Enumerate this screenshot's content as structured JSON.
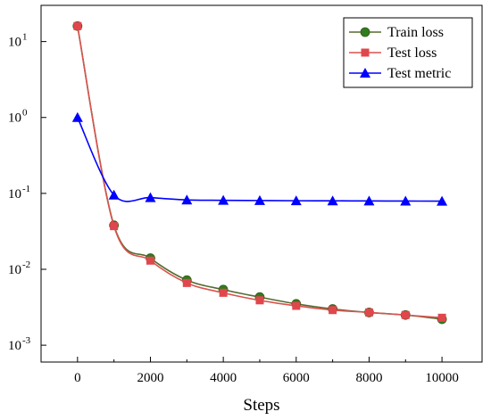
{
  "chart_data": {
    "type": "line",
    "title": "",
    "xlabel": "Steps",
    "ylabel": "",
    "x": [
      0,
      1000,
      2000,
      3000,
      4000,
      5000,
      6000,
      7000,
      8000,
      9000,
      10000
    ],
    "xlim": [
      -1000,
      11100
    ],
    "xticks": [
      0,
      2000,
      4000,
      6000,
      8000,
      10000
    ],
    "xtick_labels": [
      "0",
      "2000",
      "4000",
      "6000",
      "8000",
      "10000"
    ],
    "yscale": "log",
    "ylim": [
      0.0006,
      30
    ],
    "yticks": [
      0.001,
      0.01,
      0.1,
      1,
      10
    ],
    "ytick_labels": [
      {
        "base": "10",
        "exp": "-3"
      },
      {
        "base": "10",
        "exp": "-2"
      },
      {
        "base": "10",
        "exp": "-1"
      },
      {
        "base": "10",
        "exp": "0"
      },
      {
        "base": "10",
        "exp": "1"
      }
    ],
    "grid": false,
    "legend": "top-right",
    "series": [
      {
        "name": "Train loss",
        "color": "#2e7d1e",
        "line_color": "#556b2f",
        "marker": "circle",
        "values": [
          16,
          0.038,
          0.014,
          0.0072,
          0.0054,
          0.0043,
          0.0035,
          0.003,
          0.0027,
          0.0025,
          0.0022
        ]
      },
      {
        "name": "Test loss",
        "color": "#e0474c",
        "line_color": "#d9534f",
        "marker": "square",
        "values": [
          16,
          0.037,
          0.013,
          0.0066,
          0.0049,
          0.0039,
          0.0033,
          0.0029,
          0.0027,
          0.0025,
          0.0023
        ]
      },
      {
        "name": "Test metric",
        "color": "#0000ff",
        "line_color": "#0000ff",
        "marker": "triangle",
        "values": [
          1.0,
          0.095,
          0.088,
          0.082,
          0.081,
          0.0805,
          0.08,
          0.0798,
          0.0795,
          0.0793,
          0.079
        ]
      }
    ]
  }
}
